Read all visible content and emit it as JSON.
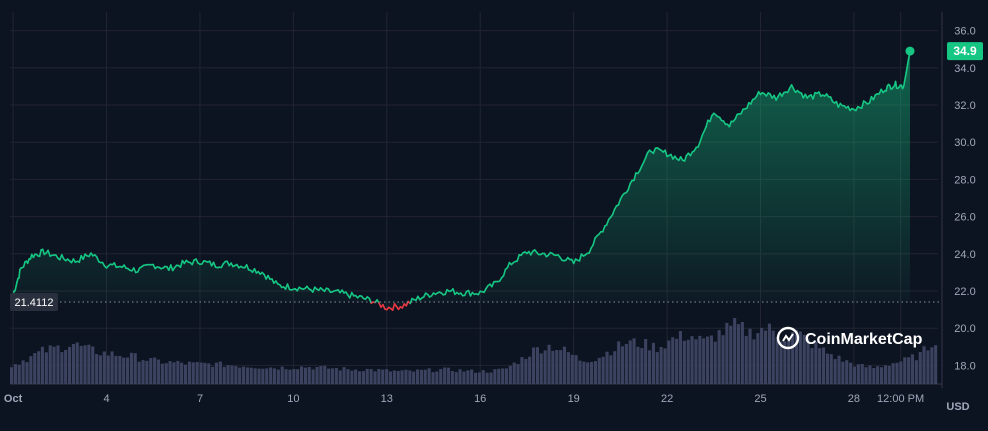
{
  "chart_data": {
    "type": "line",
    "y_unit": "USD",
    "ylim": [
      17,
      37
    ],
    "y_ticks": [
      18.0,
      20.0,
      22.0,
      24.0,
      26.0,
      28.0,
      30.0,
      32.0,
      34.0,
      36.0
    ],
    "y_tick_labels": [
      "18.0",
      "20.0",
      "22.0",
      "24.0",
      "26.0",
      "28.0",
      "30.0",
      "32.0",
      "34.0",
      "36.0"
    ],
    "x_ticks": [
      1,
      4,
      7,
      10,
      13,
      16,
      19,
      22,
      25,
      28,
      29.5
    ],
    "x_tick_labels": [
      "Oct",
      "4",
      "7",
      "10",
      "13",
      "16",
      "19",
      "22",
      "25",
      "28",
      "12:00 PM"
    ],
    "xlim": [
      0.9,
      30.7
    ],
    "grid": true,
    "open_price": 21.4112,
    "open_price_label": "21.4112",
    "current_price": 34.9,
    "current_price_label": "34.9",
    "watermark": "CoinMarketCap",
    "colors": {
      "background": "#0d1421",
      "up": "#16c784",
      "down": "#ea3943",
      "grid": "#222531",
      "axis_text": "#a1a7bb",
      "volume": "#3b4360"
    },
    "series": [
      {
        "x": [
          1.0,
          1.25,
          1.6,
          2.0,
          2.5,
          3.0,
          3.5,
          4.0,
          4.5,
          5.0,
          5.5,
          6.0,
          6.5,
          7.0,
          7.5,
          8.0,
          8.5,
          9.0,
          9.5,
          10.0,
          10.5,
          11.0,
          11.5,
          12.0,
          12.5,
          13.0,
          13.5,
          14.0,
          14.5,
          15.0,
          15.5,
          16.0,
          16.5,
          17.0,
          17.5,
          18.0,
          18.5,
          19.0,
          19.5,
          20.0,
          20.5,
          21.0,
          21.5,
          22.0,
          22.5,
          23.0,
          23.5,
          24.0,
          24.5,
          25.0,
          25.5,
          26.0,
          26.5,
          27.0,
          27.5,
          28.0,
          28.5,
          29.0,
          29.3,
          29.6,
          29.8
        ],
        "values": [
          21.8,
          23.2,
          23.9,
          24.1,
          23.8,
          23.6,
          24.0,
          23.4,
          23.3,
          23.1,
          23.4,
          23.2,
          23.5,
          23.6,
          23.4,
          23.5,
          23.3,
          23.0,
          22.3,
          22.2,
          22.1,
          22.0,
          21.9,
          21.7,
          21.5,
          21.1,
          21.2,
          21.6,
          21.9,
          22.0,
          21.9,
          21.9,
          22.4,
          23.5,
          24.1,
          24.0,
          23.9,
          23.5,
          24.2,
          25.5,
          26.9,
          28.3,
          29.6,
          29.4,
          29.0,
          29.9,
          31.7,
          30.9,
          31.8,
          32.7,
          32.4,
          33.0,
          32.4,
          32.6,
          32.0,
          31.8,
          32.2,
          32.9,
          33.1,
          33.0,
          34.9
        ]
      }
    ],
    "volume": [
      1.0,
      1.4,
      1.8,
      2.0,
      2.2,
      1.9,
      1.7,
      1.6,
      1.5,
      1.3,
      1.2,
      1.15,
      1.1,
      1.1,
      1.05,
      1.0,
      0.95,
      0.9,
      0.9,
      0.95,
      0.9,
      0.85,
      0.8,
      0.8,
      0.75,
      0.7,
      0.7,
      0.75,
      0.8,
      0.75,
      0.7,
      0.7,
      0.8,
      1.3,
      1.9,
      2.1,
      1.8,
      1.3,
      1.4,
      1.9,
      2.3,
      2.2,
      2.0,
      2.5,
      2.7,
      2.3,
      2.8,
      3.2,
      2.8,
      3.1,
      2.6,
      2.8,
      2.2,
      1.7,
      1.3,
      1.0,
      0.9,
      1.1,
      1.3,
      1.6,
      2.5
    ]
  }
}
